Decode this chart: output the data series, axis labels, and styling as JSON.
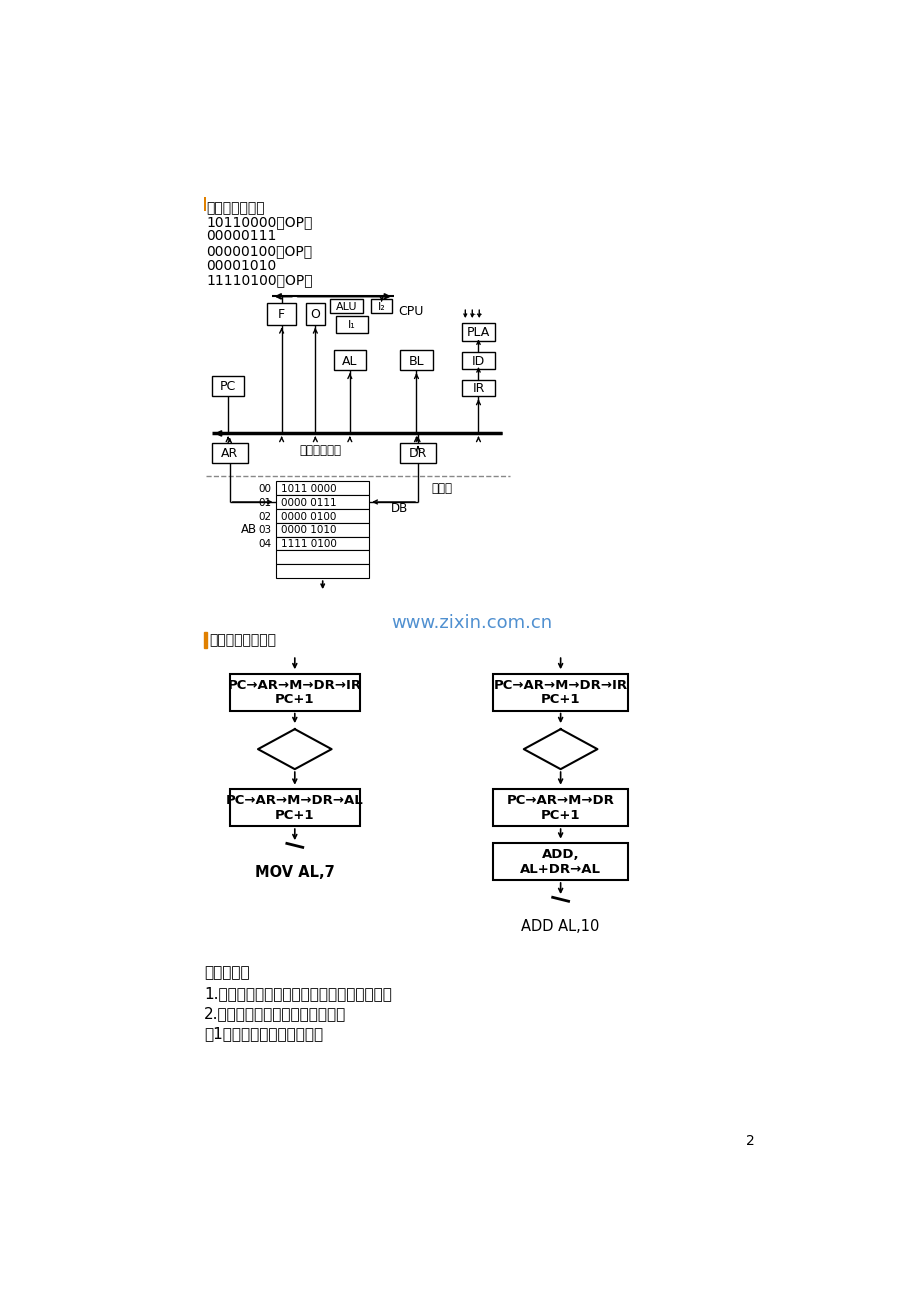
{
  "bg_color": "#ffffff",
  "title_line": "指令的机器码：",
  "machine_codes": [
    "10110000（OP）",
    "00000111",
    "00000100（OP）",
    "00001010",
    "11110100（OP）"
  ],
  "section2_title": "指令周期流程图：",
  "bottom_title": "基本概念：",
  "bottom_items": [
    "1.　微处理器、微型计算机、微型计算机系统",
    "2.　常用的名词术语和二进制编码",
    "（1）　位、字节、字及字长"
  ],
  "watermark": "www.zixin.com.cn",
  "page_num": "2",
  "cpu_label": "CPU",
  "bus_label": "内部数据总线",
  "mem_label": "存储器",
  "ab_label": "AB",
  "db_label": "DB",
  "mem_rows": [
    [
      "00",
      "1011 0000"
    ],
    [
      "01",
      "0000 0111"
    ],
    [
      "02",
      "0000 0100"
    ],
    [
      "03",
      "0000 1010"
    ],
    [
      "04",
      "1111 0100"
    ]
  ],
  "orange_bar_color": "#e08000"
}
